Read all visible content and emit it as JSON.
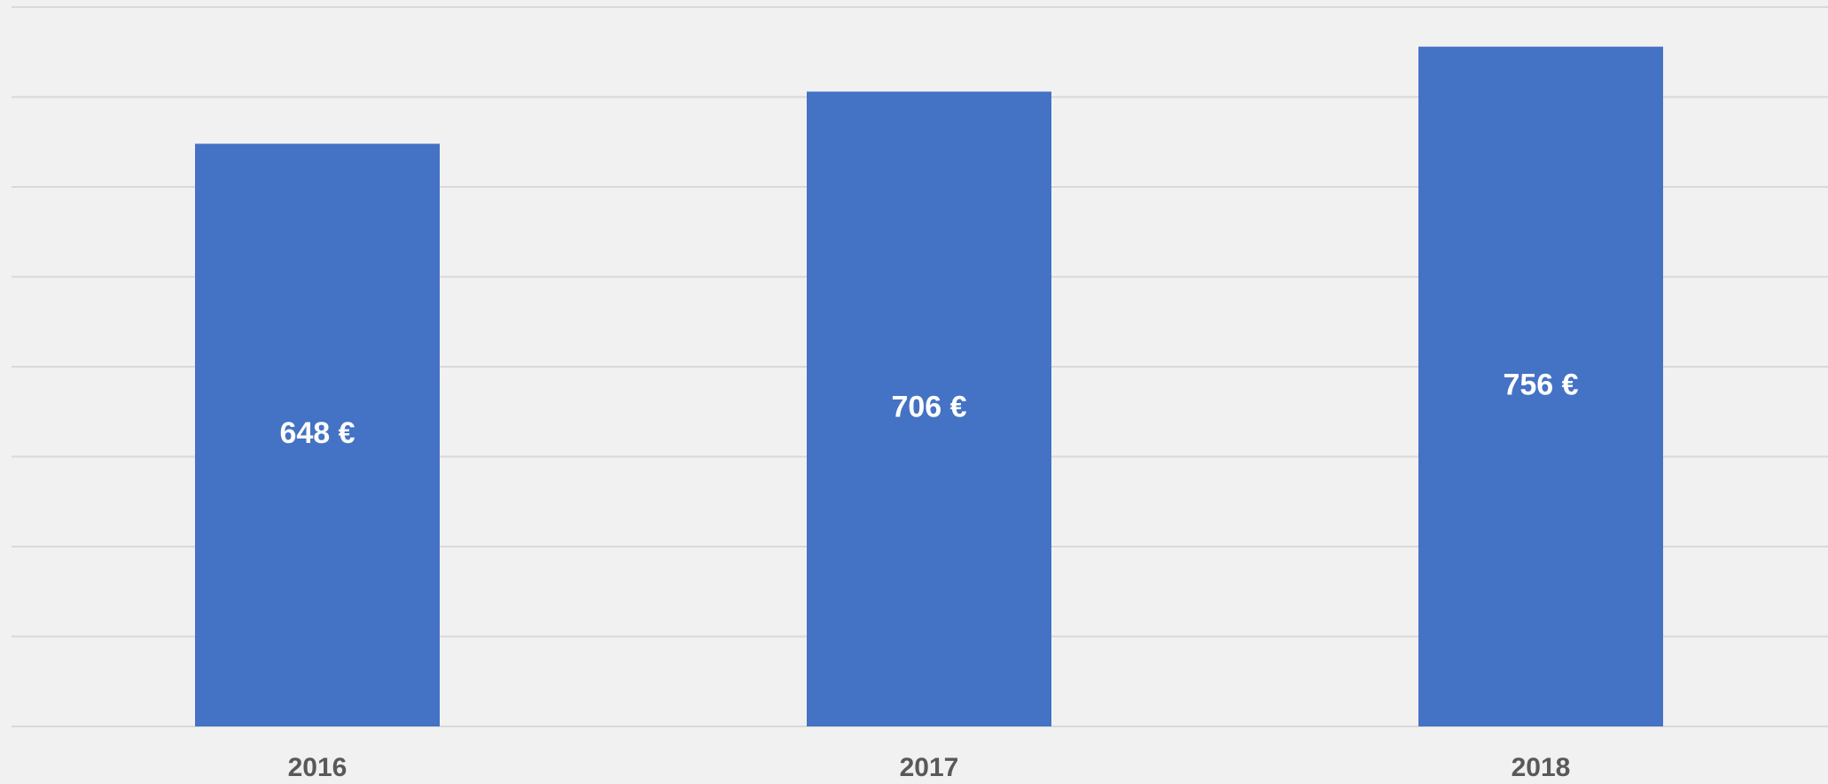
{
  "chart_data": {
    "type": "bar",
    "categories": [
      "2016",
      "2017",
      "2018"
    ],
    "values": [
      648,
      706,
      756
    ],
    "value_labels": [
      "648 €",
      "706 €",
      "756 €"
    ],
    "color": "#4472c4",
    "ylim": [
      0,
      800
    ],
    "yticks": [
      0,
      100,
      200,
      300,
      400,
      500,
      600,
      700,
      800
    ],
    "grid": true
  }
}
